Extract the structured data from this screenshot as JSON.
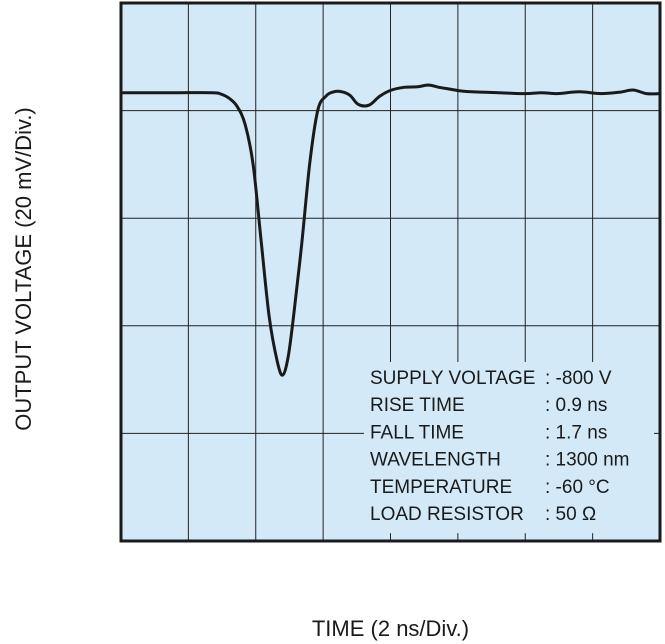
{
  "chart_data": {
    "type": "line",
    "xlabel": "TIME (2 ns/Div.)",
    "ylabel": "OUTPUT VOLTAGE (20 mV/Div.)",
    "xlim": [
      0,
      20
    ],
    "ylim": [
      -100,
      20
    ],
    "grid": true,
    "background_color": "#d3e9f7",
    "line_color": "#1a1a1a",
    "series": [
      {
        "x": [
          0,
          2,
          3.4,
          3.7,
          4.0,
          4.3,
          4.6,
          4.9,
          5.2,
          5.5,
          5.8,
          6.0,
          6.2,
          6.4,
          6.7,
          7.0,
          7.3,
          7.6,
          7.9,
          8.2,
          8.5,
          8.8,
          9.2,
          9.6,
          10.0,
          10.5,
          11.0,
          11.4,
          11.8,
          12.2,
          12.6,
          13.0,
          14.0,
          15.0,
          15.6,
          16.2,
          17.0,
          17.8,
          18.5,
          19.0,
          19.5,
          20.0
        ],
        "y": [
          0,
          0,
          0,
          -0.3,
          -1.2,
          -3,
          -7,
          -16,
          -33,
          -50,
          -60,
          -63,
          -59,
          -50,
          -34,
          -16,
          -4,
          -0.8,
          0.2,
          0.2,
          -0.6,
          -2.6,
          -2.8,
          -0.8,
          0.5,
          1.2,
          1.3,
          1.7,
          1.2,
          0.8,
          0.4,
          0.2,
          0,
          -0.2,
          0,
          -0.2,
          0.2,
          -0.2,
          0.1,
          0.6,
          -0.2,
          -0.2
        ]
      }
    ],
    "annotations": [
      {
        "label": "SUPPLY VOLTAGE",
        "value": ": -800 V"
      },
      {
        "label": "RISE TIME",
        "value": ": 0.9 ns"
      },
      {
        "label": "FALL TIME",
        "value": ": 1.7 ns"
      },
      {
        "label": "WAVELENGTH",
        "value": ": 1300 nm"
      },
      {
        "label": "TEMPERATURE",
        "value": ": -60 °C"
      },
      {
        "label": "LOAD RESISTOR",
        "value": ": 50 Ω"
      }
    ]
  }
}
